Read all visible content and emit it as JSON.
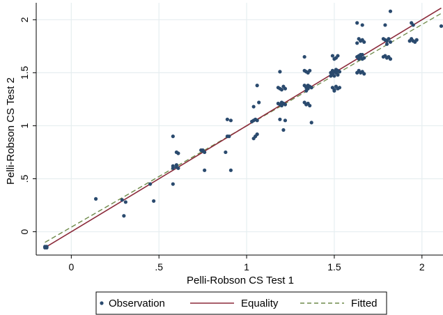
{
  "chart_data": {
    "type": "scatter",
    "xlabel": "Pelli-Robson CS Test 1",
    "ylabel": "Pelli-Robson CS Test 2",
    "xlim": [
      -0.2,
      2.12
    ],
    "ylim": [
      -0.22,
      2.16
    ],
    "x_ticks": [
      {
        "v": 0,
        "label": "0"
      },
      {
        "v": 0.5,
        "label": ".5"
      },
      {
        "v": 1,
        "label": "1"
      },
      {
        "v": 1.5,
        "label": "1.5"
      },
      {
        "v": 2,
        "label": "2"
      }
    ],
    "y_ticks": [
      {
        "v": 0,
        "label": "0"
      },
      {
        "v": 0.5,
        "label": ".5"
      },
      {
        "v": 1,
        "label": "1"
      },
      {
        "v": 1.5,
        "label": "1.5"
      },
      {
        "v": 2,
        "label": "2"
      }
    ],
    "grid": true,
    "legend_position": "bottom",
    "colors": {
      "observation": "#2a4a6e",
      "equality": "#8b2a3a",
      "fitted": "#6e8a4a",
      "grid": "#e6eef0"
    },
    "series": [
      {
        "name": "Observation",
        "kind": "points",
        "points": [
          [
            -0.15,
            -0.15
          ],
          [
            -0.14,
            -0.15
          ],
          [
            -0.15,
            -0.14
          ],
          [
            -0.14,
            -0.14
          ],
          [
            0.14,
            0.31
          ],
          [
            0.29,
            0.3
          ],
          [
            0.31,
            0.28
          ],
          [
            0.3,
            0.15
          ],
          [
            0.45,
            0.45
          ],
          [
            0.47,
            0.29
          ],
          [
            0.58,
            0.9
          ],
          [
            0.6,
            0.75
          ],
          [
            0.61,
            0.74
          ],
          [
            0.58,
            0.62
          ],
          [
            0.6,
            0.61
          ],
          [
            0.58,
            0.6
          ],
          [
            0.61,
            0.6
          ],
          [
            0.6,
            0.63
          ],
          [
            0.58,
            0.45
          ],
          [
            0.74,
            0.77
          ],
          [
            0.75,
            0.76
          ],
          [
            0.76,
            0.75
          ],
          [
            0.75,
            0.77
          ],
          [
            0.76,
            0.58
          ],
          [
            0.89,
            1.06
          ],
          [
            0.91,
            1.05
          ],
          [
            0.88,
            0.75
          ],
          [
            0.91,
            0.58
          ],
          [
            0.89,
            0.9
          ],
          [
            0.9,
            0.9
          ],
          [
            1.04,
            1.18
          ],
          [
            1.06,
            1.38
          ],
          [
            1.07,
            1.22
          ],
          [
            1.05,
            0.9
          ],
          [
            1.04,
            0.88
          ],
          [
            1.06,
            0.92
          ],
          [
            1.04,
            1.05
          ],
          [
            1.05,
            1.06
          ],
          [
            1.06,
            1.05
          ],
          [
            1.03,
            1.04
          ],
          [
            1.19,
            1.51
          ],
          [
            1.18,
            1.36
          ],
          [
            1.19,
            1.35
          ],
          [
            1.2,
            1.34
          ],
          [
            1.21,
            1.37
          ],
          [
            1.22,
            1.35
          ],
          [
            1.18,
            1.21
          ],
          [
            1.19,
            1.2
          ],
          [
            1.2,
            1.19
          ],
          [
            1.21,
            1.21
          ],
          [
            1.22,
            1.2
          ],
          [
            1.2,
            1.22
          ],
          [
            1.19,
            1.06
          ],
          [
            1.22,
            1.05
          ],
          [
            1.21,
            0.96
          ],
          [
            1.33,
            1.65
          ],
          [
            1.33,
            1.52
          ],
          [
            1.34,
            1.51
          ],
          [
            1.35,
            1.5
          ],
          [
            1.36,
            1.52
          ],
          [
            1.33,
            1.38
          ],
          [
            1.34,
            1.36
          ],
          [
            1.35,
            1.35
          ],
          [
            1.36,
            1.37
          ],
          [
            1.34,
            1.33
          ],
          [
            1.35,
            1.38
          ],
          [
            1.37,
            1.36
          ],
          [
            1.33,
            1.22
          ],
          [
            1.34,
            1.2
          ],
          [
            1.35,
            1.21
          ],
          [
            1.36,
            1.19
          ],
          [
            1.37,
            1.03
          ],
          [
            1.49,
            1.66
          ],
          [
            1.5,
            1.63
          ],
          [
            1.52,
            1.66
          ],
          [
            1.51,
            1.64
          ],
          [
            1.48,
            1.5
          ],
          [
            1.49,
            1.49
          ],
          [
            1.5,
            1.51
          ],
          [
            1.51,
            1.5
          ],
          [
            1.52,
            1.48
          ],
          [
            1.53,
            1.51
          ],
          [
            1.49,
            1.52
          ],
          [
            1.5,
            1.47
          ],
          [
            1.51,
            1.53
          ],
          [
            1.52,
            1.52
          ],
          [
            1.48,
            1.47
          ],
          [
            1.49,
            1.36
          ],
          [
            1.5,
            1.34
          ],
          [
            1.51,
            1.37
          ],
          [
            1.52,
            1.35
          ],
          [
            1.5,
            1.33
          ],
          [
            1.53,
            1.36
          ],
          [
            1.63,
            1.97
          ],
          [
            1.66,
            1.95
          ],
          [
            1.64,
            1.82
          ],
          [
            1.65,
            1.8
          ],
          [
            1.66,
            1.81
          ],
          [
            1.67,
            1.79
          ],
          [
            1.63,
            1.78
          ],
          [
            1.64,
            1.66
          ],
          [
            1.65,
            1.65
          ],
          [
            1.66,
            1.67
          ],
          [
            1.67,
            1.64
          ],
          [
            1.63,
            1.65
          ],
          [
            1.64,
            1.63
          ],
          [
            1.66,
            1.63
          ],
          [
            1.65,
            1.67
          ],
          [
            1.64,
            1.52
          ],
          [
            1.65,
            1.5
          ],
          [
            1.66,
            1.51
          ],
          [
            1.67,
            1.49
          ],
          [
            1.63,
            1.5
          ],
          [
            1.79,
            1.95
          ],
          [
            1.82,
            2.08
          ],
          [
            1.78,
            1.82
          ],
          [
            1.79,
            1.81
          ],
          [
            1.8,
            1.8
          ],
          [
            1.81,
            1.82
          ],
          [
            1.82,
            1.79
          ],
          [
            1.8,
            1.77
          ],
          [
            1.78,
            1.65
          ],
          [
            1.79,
            1.66
          ],
          [
            1.8,
            1.64
          ],
          [
            1.81,
            1.65
          ],
          [
            1.82,
            1.63
          ],
          [
            1.94,
            1.97
          ],
          [
            1.95,
            1.95
          ],
          [
            1.94,
            1.82
          ],
          [
            1.95,
            1.8
          ],
          [
            1.96,
            1.79
          ],
          [
            1.97,
            1.81
          ],
          [
            1.93,
            1.8
          ],
          [
            2.11,
            1.94
          ]
        ]
      },
      {
        "name": "Equality",
        "kind": "line",
        "points": [
          [
            -0.15,
            -0.15
          ],
          [
            2.11,
            2.11
          ]
        ]
      },
      {
        "name": "Fitted",
        "kind": "dashed-line",
        "points": [
          [
            -0.15,
            -0.1
          ],
          [
            2.11,
            2.06
          ]
        ]
      }
    ]
  }
}
